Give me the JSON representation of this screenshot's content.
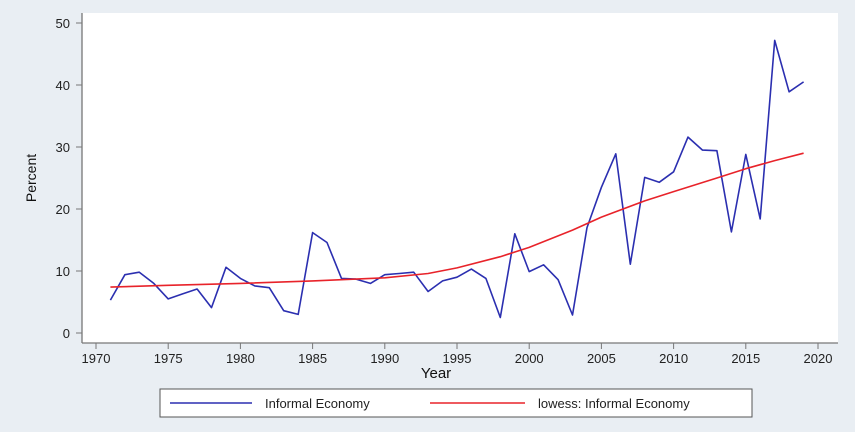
{
  "chart_data": {
    "type": "line",
    "xlabel": "Year",
    "ylabel": "Percent",
    "xlim": [
      1970,
      2020
    ],
    "ylim": [
      0,
      50
    ],
    "xticks": [
      1970,
      1975,
      1980,
      1985,
      1990,
      1995,
      2000,
      2005,
      2010,
      2015,
      2020
    ],
    "yticks": [
      0,
      10,
      20,
      30,
      40,
      50
    ],
    "grid": false,
    "legend_position": "bottom",
    "series": [
      {
        "name": "Informal Economy",
        "color": "#2b2fb0",
        "x": [
          1971,
          1972,
          1973,
          1974,
          1975,
          1976,
          1977,
          1978,
          1979,
          1980,
          1981,
          1982,
          1983,
          1984,
          1985,
          1986,
          1987,
          1988,
          1989,
          1990,
          1991,
          1992,
          1993,
          1994,
          1995,
          1996,
          1997,
          1998,
          1999,
          2000,
          2001,
          2002,
          2003,
          2004,
          2005,
          2006,
          2007,
          2008,
          2009,
          2010,
          2011,
          2012,
          2013,
          2014,
          2015,
          2016,
          2017,
          2018,
          2019
        ],
        "y": [
          5.3,
          9.4,
          9.8,
          8.0,
          5.5,
          6.3,
          7.1,
          4.1,
          10.6,
          8.8,
          7.6,
          7.3,
          3.6,
          3.0,
          16.2,
          14.6,
          8.8,
          8.7,
          8.0,
          9.4,
          9.6,
          9.8,
          6.7,
          8.4,
          9.0,
          10.3,
          8.8,
          2.5,
          16.0,
          9.9,
          11.0,
          8.6,
          2.9,
          17.0,
          23.5,
          28.9,
          11.1,
          25.1,
          24.3,
          26.0,
          31.6,
          29.5,
          29.4,
          16.3,
          28.8,
          18.4,
          47.2,
          38.9,
          40.5
        ]
      },
      {
        "name": "lowess: Informal Economy",
        "color": "#e8232a",
        "x": [
          1971,
          1975,
          1980,
          1985,
          1990,
          1993,
          1995,
          1998,
          2000,
          2003,
          2005,
          2008,
          2010,
          2013,
          2015,
          2017,
          2019
        ],
        "y": [
          7.4,
          7.7,
          8.0,
          8.4,
          8.9,
          9.6,
          10.5,
          12.3,
          13.8,
          16.6,
          18.7,
          21.3,
          22.8,
          25.0,
          26.5,
          27.8,
          29.0
        ]
      }
    ]
  }
}
